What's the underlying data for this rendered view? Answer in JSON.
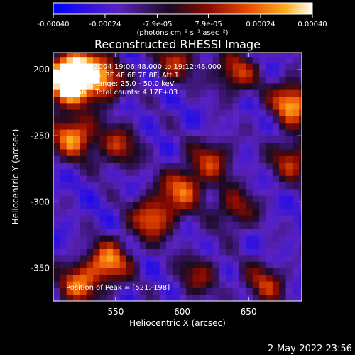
{
  "chart_data": {
    "type": "heatmap",
    "title": "Reconstructed RHESSI Image",
    "xlabel": "Heliocentric X (arcsec)",
    "ylabel": "Heliocentric Y (arcsec)",
    "xlim": [
      503,
      690
    ],
    "ylim": [
      -375,
      -187
    ],
    "x_ticks": [
      550,
      600,
      650
    ],
    "y_ticks": [
      -200,
      -250,
      -300,
      -350
    ],
    "colorbar": {
      "range": [
        -0.0004,
        0.0004
      ],
      "tick_values": [
        -0.0004,
        -0.00024,
        -7.9e-05,
        7.9e-05,
        0.00024,
        0.0004
      ],
      "tick_labels": [
        "-0.00040",
        "-0.00024",
        "-7.9e-05",
        "7.9e-05",
        "0.00024",
        "0.00040"
      ],
      "unit_label": "(photons cm⁻² s⁻¹ asec⁻²)",
      "colors": [
        "#0000ff",
        "#5a22c0",
        "#1a0a20",
        "#8a0a00",
        "#e84a00",
        "#ffb020",
        "#ffffff"
      ]
    },
    "annotations": {
      "time_range": "19-Aug-2004 19:06:48.000 to 19:12:48.000",
      "detectors": "Detectors: 3F 4F 6F 7F 8F, Att 1",
      "energy_range": "Energy Range: 25.0 - 50.0 keV",
      "method": "Clean    Total counts: 4.17E+03",
      "peak": "Position of Peak = [521,-198]"
    },
    "bright_sources": [
      {
        "x": 521,
        "y": -198,
        "level": 1.0
      },
      {
        "x": 512,
        "y": -212,
        "level": 0.9
      },
      {
        "x": 540,
        "y": -208,
        "level": 0.75
      },
      {
        "x": 518,
        "y": -250,
        "level": 0.85
      },
      {
        "x": 552,
        "y": -258,
        "level": 0.55
      },
      {
        "x": 595,
        "y": -193,
        "level": 0.55
      },
      {
        "x": 640,
        "y": -202,
        "level": 0.6
      },
      {
        "x": 683,
        "y": -225,
        "level": 0.9
      },
      {
        "x": 683,
        "y": -268,
        "level": 0.6
      },
      {
        "x": 622,
        "y": -268,
        "level": 0.55
      },
      {
        "x": 600,
        "y": -290,
        "level": 0.7
      },
      {
        "x": 578,
        "y": -312,
        "level": 0.75
      },
      {
        "x": 545,
        "y": -345,
        "level": 0.8
      },
      {
        "x": 522,
        "y": -362,
        "level": 0.7
      },
      {
        "x": 640,
        "y": -305,
        "level": 0.5
      },
      {
        "x": 662,
        "y": -362,
        "level": 0.55
      },
      {
        "x": 612,
        "y": -355,
        "level": 0.45
      }
    ]
  },
  "footer_timestamp": "2-May-2022 23:56"
}
